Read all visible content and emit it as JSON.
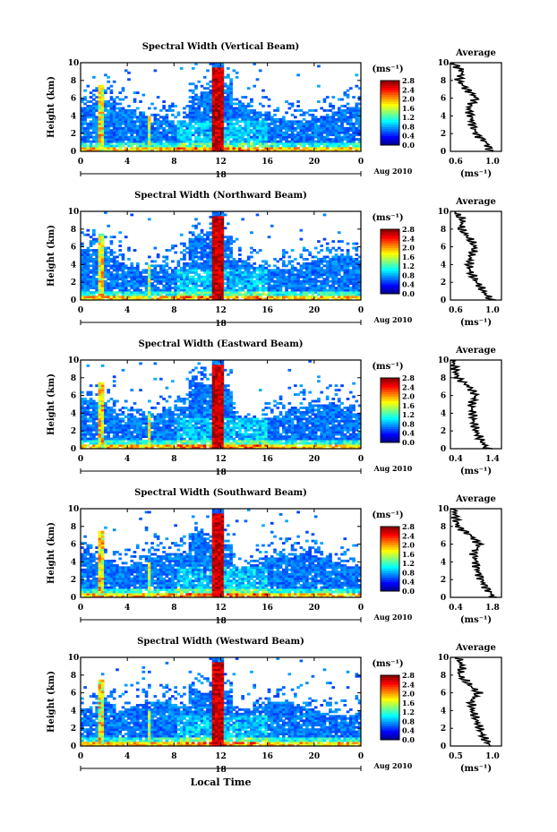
{
  "figure": {
    "x_axis_title": "Local Time",
    "date_label": "Aug 2010",
    "day_label": "18",
    "unit_label": "(ms⁻¹)",
    "avg_title": "Average",
    "avg_xlabel": "(ms⁻¹)"
  },
  "colorbar_ticks": [
    "0.0",
    "0.4",
    "0.8",
    "1.2",
    "1.6",
    "2.0",
    "2.4",
    "2.8"
  ],
  "panels": [
    {
      "title": "Spectral Width (Vertical Beam)",
      "avg_ticks": [
        "0.6",
        "1.0"
      ]
    },
    {
      "title": "Spectral Width (Northward Beam)",
      "avg_ticks": [
        "0.6",
        "1.0"
      ]
    },
    {
      "title": "Spectral Width (Eastward Beam)",
      "avg_ticks": [
        "0.4",
        "1.4"
      ]
    },
    {
      "title": "Spectral Width (Southward Beam)",
      "avg_ticks": [
        "0.4",
        "1.8"
      ]
    },
    {
      "title": "Spectral Width (Westward Beam)",
      "avg_ticks": [
        "0.5",
        "1.0"
      ]
    }
  ],
  "chart_data": [
    {
      "type": "heatmap",
      "title": "Spectral Width (Vertical Beam)",
      "ylabel": "Height (km)",
      "xlabel": "Local Time",
      "x_ticks": [
        "0",
        "4",
        "8",
        "12",
        "16",
        "20",
        "0"
      ],
      "y_ticks": [
        "0",
        "2",
        "4",
        "6",
        "8",
        "10"
      ],
      "xlim": [
        0,
        24
      ],
      "ylim": [
        0,
        10
      ],
      "colorbar": {
        "label": "(ms⁻¹)",
        "range": [
          0.0,
          2.8
        ]
      },
      "average_profile": {
        "xlim": [
          0.6,
          1.1
        ],
        "x_ticks": [
          "0.6",
          "1.0"
        ],
        "height": [
          0,
          1,
          2,
          3,
          4,
          5,
          6,
          7,
          8,
          9,
          10
        ],
        "value": [
          1.0,
          0.95,
          0.85,
          0.82,
          0.8,
          0.78,
          0.86,
          0.76,
          0.68,
          0.72,
          0.62
        ]
      }
    },
    {
      "type": "heatmap",
      "title": "Spectral Width (Northward Beam)",
      "ylabel": "Height (km)",
      "xlabel": "Local Time",
      "x_ticks": [
        "0",
        "4",
        "8",
        "12",
        "16",
        "20",
        "0"
      ],
      "y_ticks": [
        "0",
        "2",
        "4",
        "6",
        "8",
        "10"
      ],
      "xlim": [
        0,
        24
      ],
      "ylim": [
        0,
        10
      ],
      "colorbar": {
        "label": "(ms⁻¹)",
        "range": [
          0.0,
          2.8
        ]
      },
      "average_profile": {
        "xlim": [
          0.6,
          1.1
        ],
        "x_ticks": [
          "0.6",
          "1.0"
        ],
        "height": [
          0,
          1,
          2,
          3,
          4,
          5,
          6,
          7,
          8,
          9,
          10
        ],
        "value": [
          1.0,
          0.92,
          0.86,
          0.8,
          0.78,
          0.8,
          0.84,
          0.78,
          0.7,
          0.72,
          0.64
        ]
      }
    },
    {
      "type": "heatmap",
      "title": "Spectral Width (Eastward Beam)",
      "ylabel": "Height (km)",
      "xlabel": "Local Time",
      "x_ticks": [
        "0",
        "4",
        "8",
        "12",
        "16",
        "20",
        "0"
      ],
      "y_ticks": [
        "0",
        "2",
        "4",
        "6",
        "8",
        "10"
      ],
      "xlim": [
        0,
        24
      ],
      "ylim": [
        0,
        10
      ],
      "colorbar": {
        "label": "(ms⁻¹)",
        "range": [
          0.0,
          2.8
        ]
      },
      "average_profile": {
        "xlim": [
          0.4,
          1.5
        ],
        "x_ticks": [
          "0.4",
          "1.4"
        ],
        "height": [
          0,
          1,
          2,
          3,
          4,
          5,
          6,
          7,
          8,
          9,
          10
        ],
        "value": [
          1.2,
          1.05,
          0.95,
          0.9,
          0.88,
          0.85,
          0.95,
          0.8,
          0.55,
          0.5,
          0.45
        ]
      }
    },
    {
      "type": "heatmap",
      "title": "Spectral Width (Southward Beam)",
      "ylabel": "Height (km)",
      "xlabel": "Local Time",
      "x_ticks": [
        "0",
        "4",
        "8",
        "12",
        "16",
        "20",
        "0"
      ],
      "y_ticks": [
        "0",
        "2",
        "4",
        "6",
        "8",
        "10"
      ],
      "xlim": [
        0,
        24
      ],
      "ylim": [
        0,
        10
      ],
      "colorbar": {
        "label": "(ms⁻¹)",
        "range": [
          0.0,
          2.8
        ]
      },
      "average_profile": {
        "xlim": [
          0.4,
          1.8
        ],
        "x_ticks": [
          "0.4",
          "1.8"
        ],
        "height": [
          0,
          1,
          2,
          3,
          4,
          5,
          6,
          7,
          8,
          9,
          10
        ],
        "value": [
          1.6,
          1.4,
          1.25,
          1.15,
          1.1,
          1.05,
          1.2,
          0.95,
          0.6,
          0.55,
          0.5
        ]
      }
    },
    {
      "type": "heatmap",
      "title": "Spectral Width (Westward Beam)",
      "ylabel": "Height (km)",
      "xlabel": "Local Time",
      "x_ticks": [
        "0",
        "4",
        "8",
        "12",
        "16",
        "20",
        "0"
      ],
      "y_ticks": [
        "0",
        "2",
        "4",
        "6",
        "8",
        "10"
      ],
      "xlim": [
        0,
        24
      ],
      "ylim": [
        0,
        10
      ],
      "colorbar": {
        "label": "(ms⁻¹)",
        "range": [
          0.0,
          2.8
        ]
      },
      "average_profile": {
        "xlim": [
          0.5,
          1.2
        ],
        "x_ticks": [
          "0.5",
          "1.0"
        ],
        "height": [
          0,
          1,
          2,
          3,
          4,
          5,
          6,
          7,
          8,
          9,
          10
        ],
        "value": [
          1.05,
          0.95,
          0.9,
          0.85,
          0.8,
          0.78,
          0.88,
          0.75,
          0.62,
          0.66,
          0.6
        ]
      }
    }
  ]
}
